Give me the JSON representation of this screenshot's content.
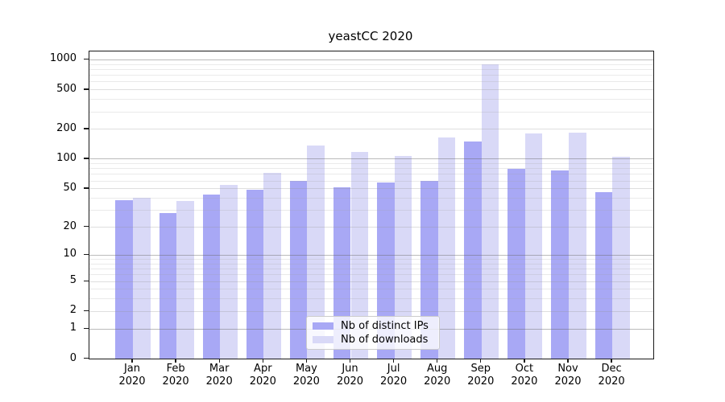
{
  "chart_data": {
    "type": "bar",
    "title": "yeastCC 2020",
    "xlabel": "",
    "ylabel": "",
    "y_scale": "log10(1+y)",
    "ylim": [
      0,
      1180
    ],
    "grid": true,
    "legend_position": "lower center",
    "x_year_line": "2020",
    "categories": [
      "Jan",
      "Feb",
      "Mar",
      "Apr",
      "May",
      "Jun",
      "Jul",
      "Aug",
      "Sep",
      "Oct",
      "Nov",
      "Dec"
    ],
    "y_ticks": [
      0,
      1,
      2,
      5,
      10,
      20,
      50,
      100,
      200,
      500,
      1000
    ],
    "y_minor_ticks": [
      3,
      4,
      6,
      7,
      8,
      9,
      30,
      40,
      60,
      70,
      80,
      90,
      300,
      400,
      600,
      700,
      800,
      900
    ],
    "decade_ticks": [
      1,
      10,
      100,
      1000
    ],
    "series": [
      {
        "name": "Nb of distinct IPs",
        "color": "#a8a8f5",
        "values": [
          38,
          28,
          43,
          48,
          60,
          51,
          57,
          60,
          150,
          79,
          76,
          46
        ]
      },
      {
        "name": "Nb of downloads",
        "color": "#d9d9f7",
        "values": [
          40,
          37,
          54,
          72,
          135,
          118,
          106,
          165,
          900,
          179,
          183,
          105
        ]
      }
    ]
  }
}
